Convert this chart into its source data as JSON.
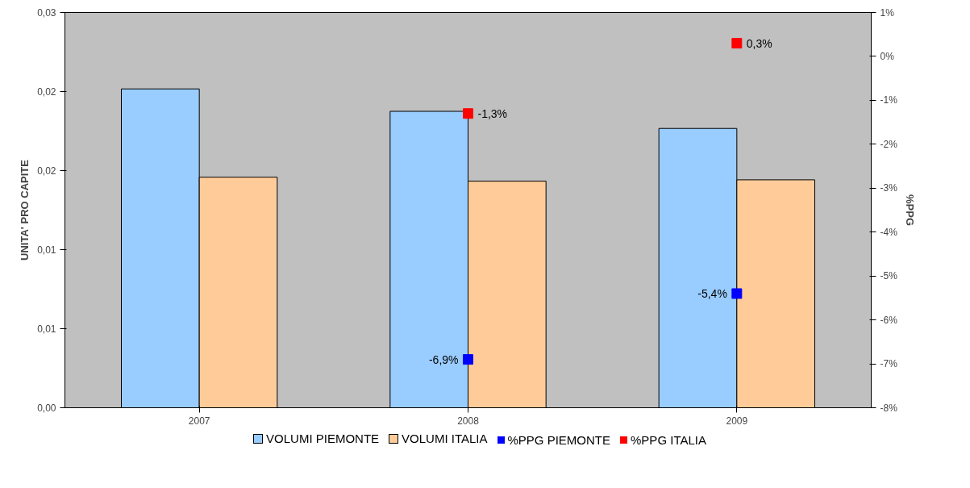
{
  "chart_data": {
    "type": "bar",
    "categories": [
      "2007",
      "2008",
      "2009"
    ],
    "ylabel": "UNITA' PRO CAPITE",
    "y2label": "%PPG",
    "ylim": [
      0,
      0.03
    ],
    "yticks": [
      {
        "value": 0,
        "label": "0,00"
      },
      {
        "value": 0.006,
        "label": "0,01"
      },
      {
        "value": 0.012,
        "label": "0,01"
      },
      {
        "value": 0.018,
        "label": "0,02"
      },
      {
        "value": 0.024,
        "label": "0,02"
      },
      {
        "value": 0.03,
        "label": "0,03"
      }
    ],
    "y2lim": [
      -8,
      1
    ],
    "y2ticks": [
      {
        "value": -8,
        "label": "-8%"
      },
      {
        "value": -7,
        "label": "-7%"
      },
      {
        "value": -6,
        "label": "-6%"
      },
      {
        "value": -5,
        "label": "-5%"
      },
      {
        "value": -4,
        "label": "-4%"
      },
      {
        "value": -3,
        "label": "-3%"
      },
      {
        "value": -2,
        "label": "-2%"
      },
      {
        "value": -1,
        "label": "-1%"
      },
      {
        "value": 0,
        "label": "0%"
      },
      {
        "value": 1,
        "label": "1%"
      }
    ],
    "grid": false,
    "legend": "bottom",
    "series": [
      {
        "name": "VOLUMI PIEMONTE",
        "color": "#99ccff",
        "values": [
          0.0242,
          0.0225,
          0.0212
        ]
      },
      {
        "name": "VOLUMI ITALIA",
        "color": "#ffcc99",
        "values": [
          0.0175,
          0.0172,
          0.0173
        ]
      },
      {
        "name": "%PPG PIEMONTE",
        "color": "#0000ff",
        "type": "scatter",
        "axis": "y2",
        "marker": "square",
        "values": [
          null,
          -6.9,
          -5.4
        ],
        "value_labels": [
          null,
          "-6,9%",
          "-5,4%"
        ]
      },
      {
        "name": "%PPG ITALIA",
        "color": "#ff0000",
        "type": "scatter",
        "axis": "y2",
        "marker": "square",
        "values": [
          null,
          -1.3,
          0.3
        ],
        "value_labels": [
          null,
          "-1,3%",
          "0,3%"
        ]
      }
    ]
  }
}
